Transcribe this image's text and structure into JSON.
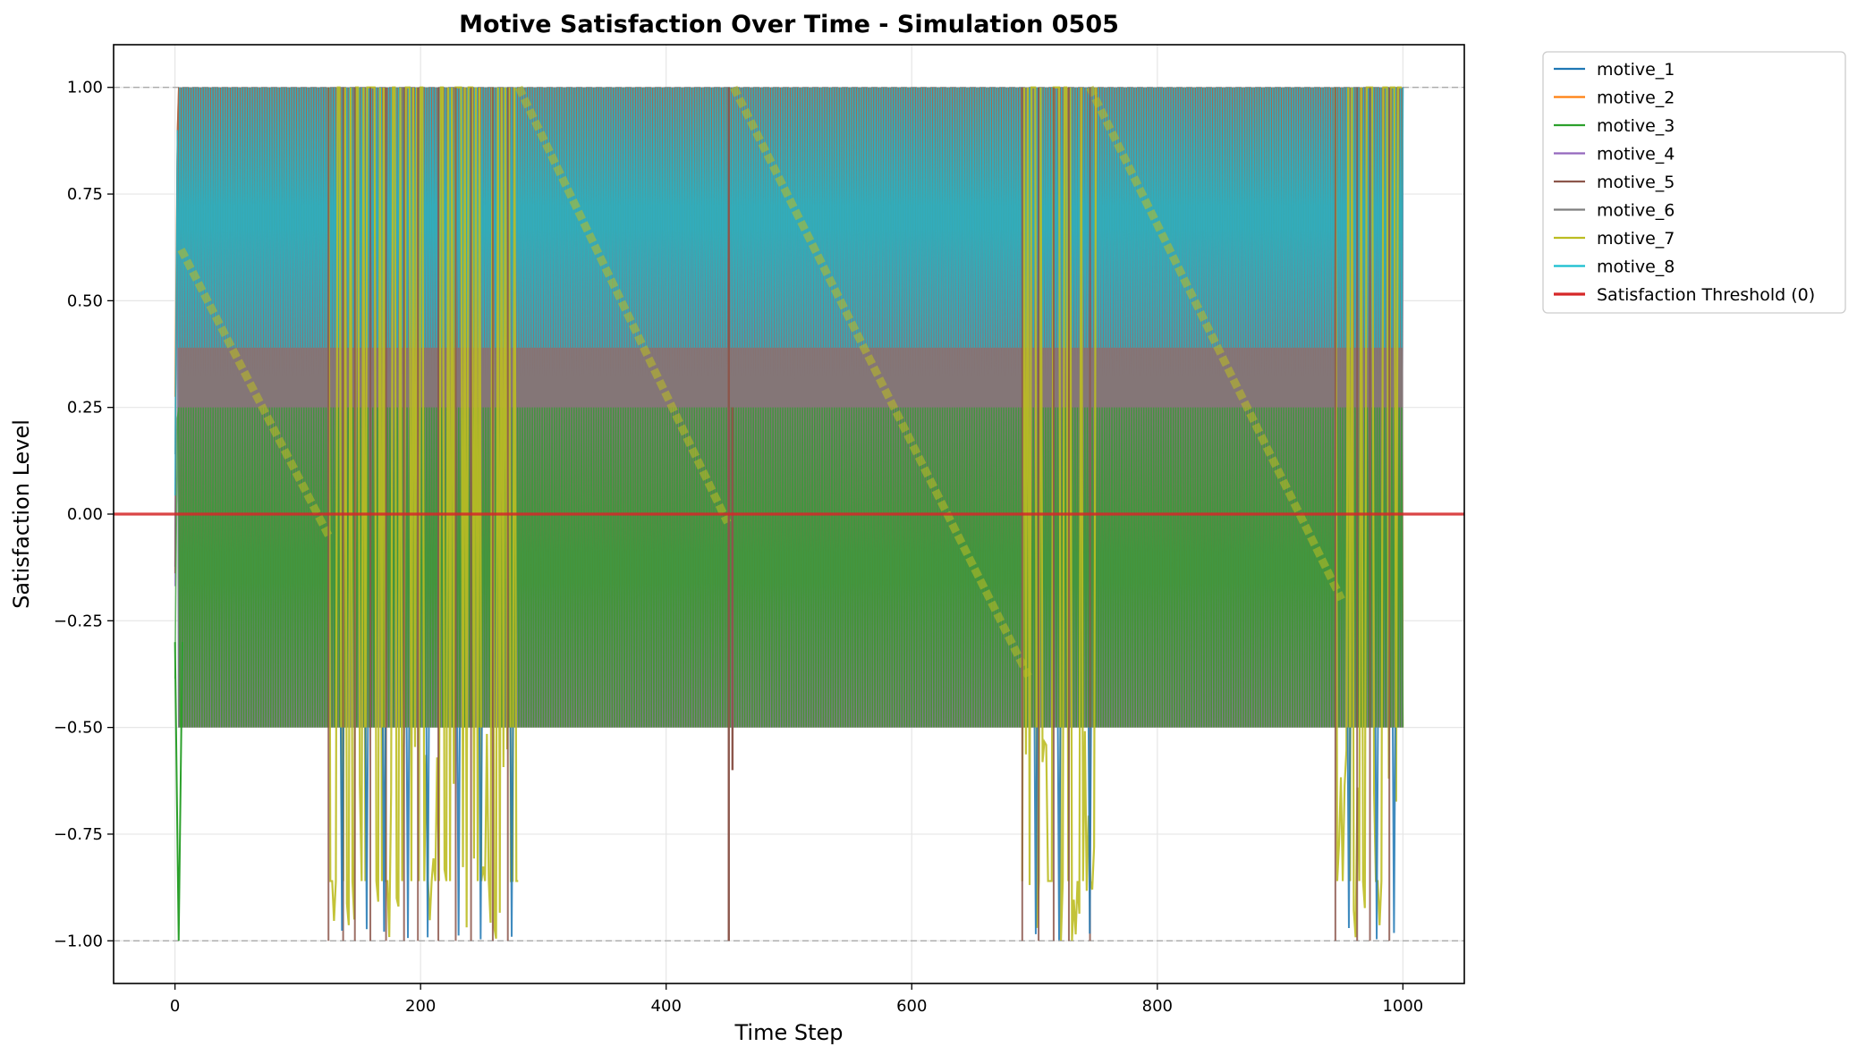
{
  "chart_data": {
    "type": "line",
    "title": "Motive Satisfaction Over Time - Simulation 0505",
    "xlabel": "Time Step",
    "ylabel": "Satisfaction Level",
    "xlim": [
      -50,
      1050
    ],
    "ylim": [
      -1.1,
      1.1
    ],
    "xticks": [
      0,
      200,
      400,
      600,
      800,
      1000
    ],
    "xtick_labels": [
      "0",
      "200",
      "400",
      "600",
      "800",
      "1000"
    ],
    "yticks": [
      -1.0,
      -0.75,
      -0.5,
      -0.25,
      0.0,
      0.25,
      0.5,
      0.75,
      1.0
    ],
    "ytick_labels": [
      "−1.00",
      "−0.75",
      "−0.50",
      "−0.25",
      "0.00",
      "0.25",
      "0.50",
      "0.75",
      "1.00"
    ],
    "grid": true,
    "legend_position": "outside-top-right",
    "reference_lines": [
      {
        "y": 1.0,
        "style": "dashed",
        "color": "#aaaaaa"
      },
      {
        "y": -1.0,
        "style": "dashed",
        "color": "#aaaaaa"
      }
    ],
    "series": [
      {
        "name": "motive_1",
        "color": "#1f77b4",
        "pattern": "oscillating",
        "band": [
          -0.5,
          1.0
        ]
      },
      {
        "name": "motive_2",
        "color": "#ff7f0e",
        "pattern": "oscillating",
        "band": [
          -0.5,
          1.0
        ]
      },
      {
        "name": "motive_3",
        "color": "#2ca02c",
        "pattern": "oscillating",
        "band": [
          -0.5,
          0.25
        ]
      },
      {
        "name": "motive_4",
        "color": "#9467bd",
        "pattern": "oscillating",
        "band": [
          -0.5,
          1.0
        ]
      },
      {
        "name": "motive_5",
        "color": "#8c564b",
        "pattern": "oscillating",
        "band": [
          -0.5,
          1.0
        ]
      },
      {
        "name": "motive_6",
        "color": "#7f7f7f",
        "pattern": "oscillating",
        "band": [
          -0.5,
          1.0
        ]
      },
      {
        "name": "motive_7",
        "color": "#bcbd22",
        "pattern": "decay-with-bursts",
        "decay_segments": [
          [
            5,
            0.62,
            125,
            -0.05
          ],
          [
            280,
            1.0,
            450,
            -0.02
          ],
          [
            455,
            1.0,
            695,
            -0.38
          ],
          [
            745,
            1.0,
            950,
            -0.2
          ]
        ],
        "burst_ranges": [
          [
            125,
            280
          ],
          [
            690,
            750
          ],
          [
            945,
            1000
          ]
        ]
      },
      {
        "name": "motive_8",
        "color": "#17becf",
        "pattern": "oscillating",
        "band": [
          0.39,
          1.0
        ]
      },
      {
        "name": "Satisfaction Threshold (0)",
        "color": "#d62728",
        "y": 0.0
      }
    ]
  }
}
